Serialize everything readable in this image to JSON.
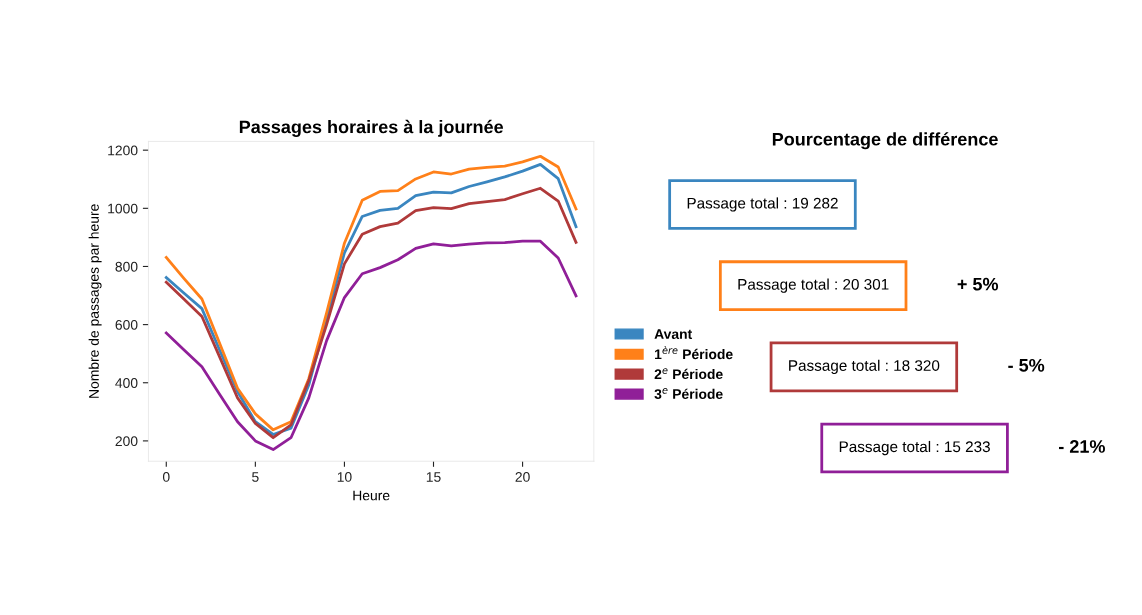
{
  "chart_data": [
    {
      "type": "line",
      "title": "Passages horaires à la journée",
      "xlabel": "Heure",
      "ylabel": "Nombre de passages par heure",
      "x": [
        0,
        1,
        2,
        3,
        4,
        5,
        6,
        7,
        8,
        9,
        10,
        11,
        12,
        13,
        14,
        15,
        16,
        17,
        18,
        19,
        20,
        21,
        22,
        23
      ],
      "series": [
        {
          "name": "Avant",
          "color": "#3a86c0",
          "values": [
            762,
            708,
            655,
            512,
            370,
            266,
            222,
            244,
            392,
            620,
            847,
            972,
            993,
            1000,
            1044,
            1056,
            1053,
            1075,
            1091,
            1108,
            1128,
            1151,
            1102,
            937
          ]
        },
        {
          "name": "1$^{ère}$ Période",
          "color": "#ff8019",
          "values": [
            831,
            758,
            688,
            535,
            381,
            293,
            238,
            266,
            414,
            640,
            880,
            1028,
            1058,
            1061,
            1101,
            1125,
            1118,
            1135,
            1141,
            1145,
            1160,
            1179,
            1142,
            998
          ]
        },
        {
          "name": "2$^{e}$ Période",
          "color": "#b03a3a",
          "values": [
            746,
            687,
            628,
            488,
            348,
            260,
            211,
            255,
            408,
            600,
            809,
            911,
            937,
            949,
            992,
            1002,
            999,
            1016,
            1023,
            1030,
            1050,
            1069,
            1025,
            883
          ]
        },
        {
          "name": "3$^{e}$ Période",
          "color": "#901f98",
          "values": [
            571,
            513,
            455,
            360,
            266,
            200,
            170,
            211,
            348,
            545,
            693,
            775,
            796,
            823,
            862,
            878,
            871,
            877,
            881,
            882,
            887,
            887,
            829,
            699
          ]
        }
      ],
      "xlim": [
        -1,
        24
      ],
      "ylim": [
        130,
        1230
      ],
      "xticks": [
        0,
        5,
        10,
        15,
        20
      ],
      "yticks": [
        200,
        400,
        600,
        800,
        1000,
        1200
      ],
      "grid": false,
      "legend": "right"
    },
    {
      "type": "other",
      "title": "Pourcentage de différence",
      "categories": [
        "Passage total : 19 282",
        "Passage total : 20 301",
        "Passage total : 18 320",
        "Passage total : 15 233"
      ],
      "colors": [
        "#3a86c0",
        "#ff8019",
        "#b03a3a",
        "#901f98"
      ],
      "value_labels": [
        null,
        "+ 5%",
        "- 5%",
        "- 21%"
      ]
    }
  ]
}
